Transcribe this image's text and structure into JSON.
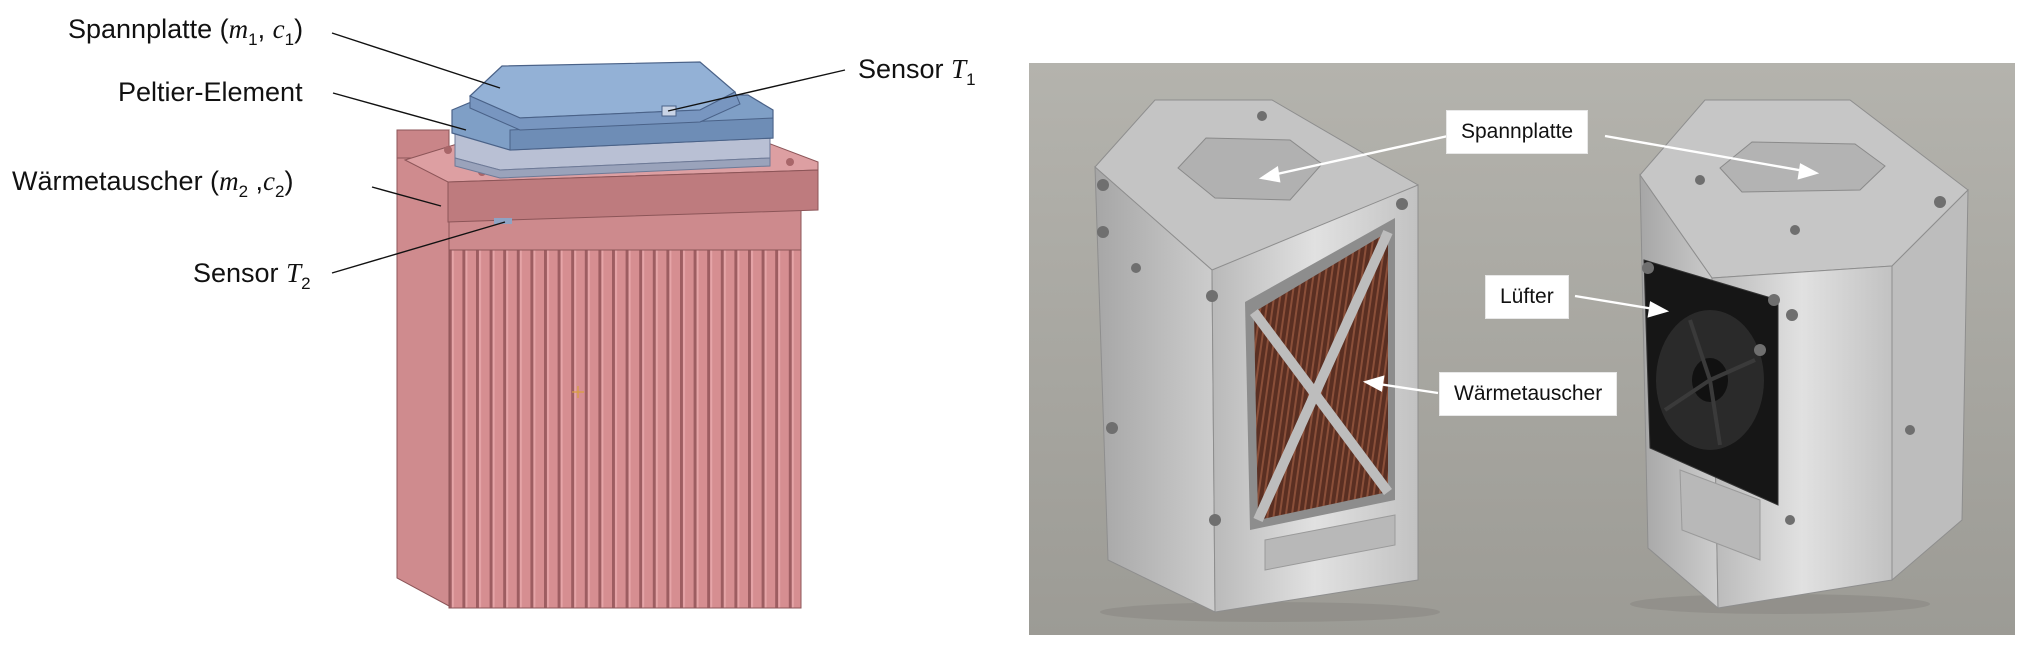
{
  "schematic": {
    "labels": {
      "spannplatte": {
        "text": "Spannplatte (",
        "sym1": "m",
        "sub1": "1",
        "sep": ", ",
        "sym2": "c",
        "sub2": "1",
        "close": ")"
      },
      "peltier": {
        "text": "Peltier-Element"
      },
      "waermetauscher": {
        "text": "Wärmetauscher (",
        "sym1": "m",
        "sub1": "2",
        "sep": " ,",
        "sym2": "c",
        "sub2": "2",
        "close": ")"
      },
      "sensor1": {
        "text": "Sensor ",
        "sym": "T",
        "sub": "1"
      },
      "sensor2": {
        "text": "Sensor ",
        "sym": "T",
        "sub": "2"
      }
    },
    "colors": {
      "heatsink": "#d4898c",
      "heatsink_dark": "#b86f73",
      "plate": "#7f9fc6",
      "plate_dark": "#5f7fa6",
      "peltier": "#b8bfd3"
    }
  },
  "photo": {
    "callouts": {
      "spannplatte": "Spannplatte",
      "luefter": "Lüfter",
      "waermetauscher": "Wärmetauscher"
    },
    "colors": {
      "background": "#a9a8a2",
      "aluminum": "#cfcfcf",
      "copper": "#6b3b2a",
      "fan": "#1a1a1a"
    }
  }
}
